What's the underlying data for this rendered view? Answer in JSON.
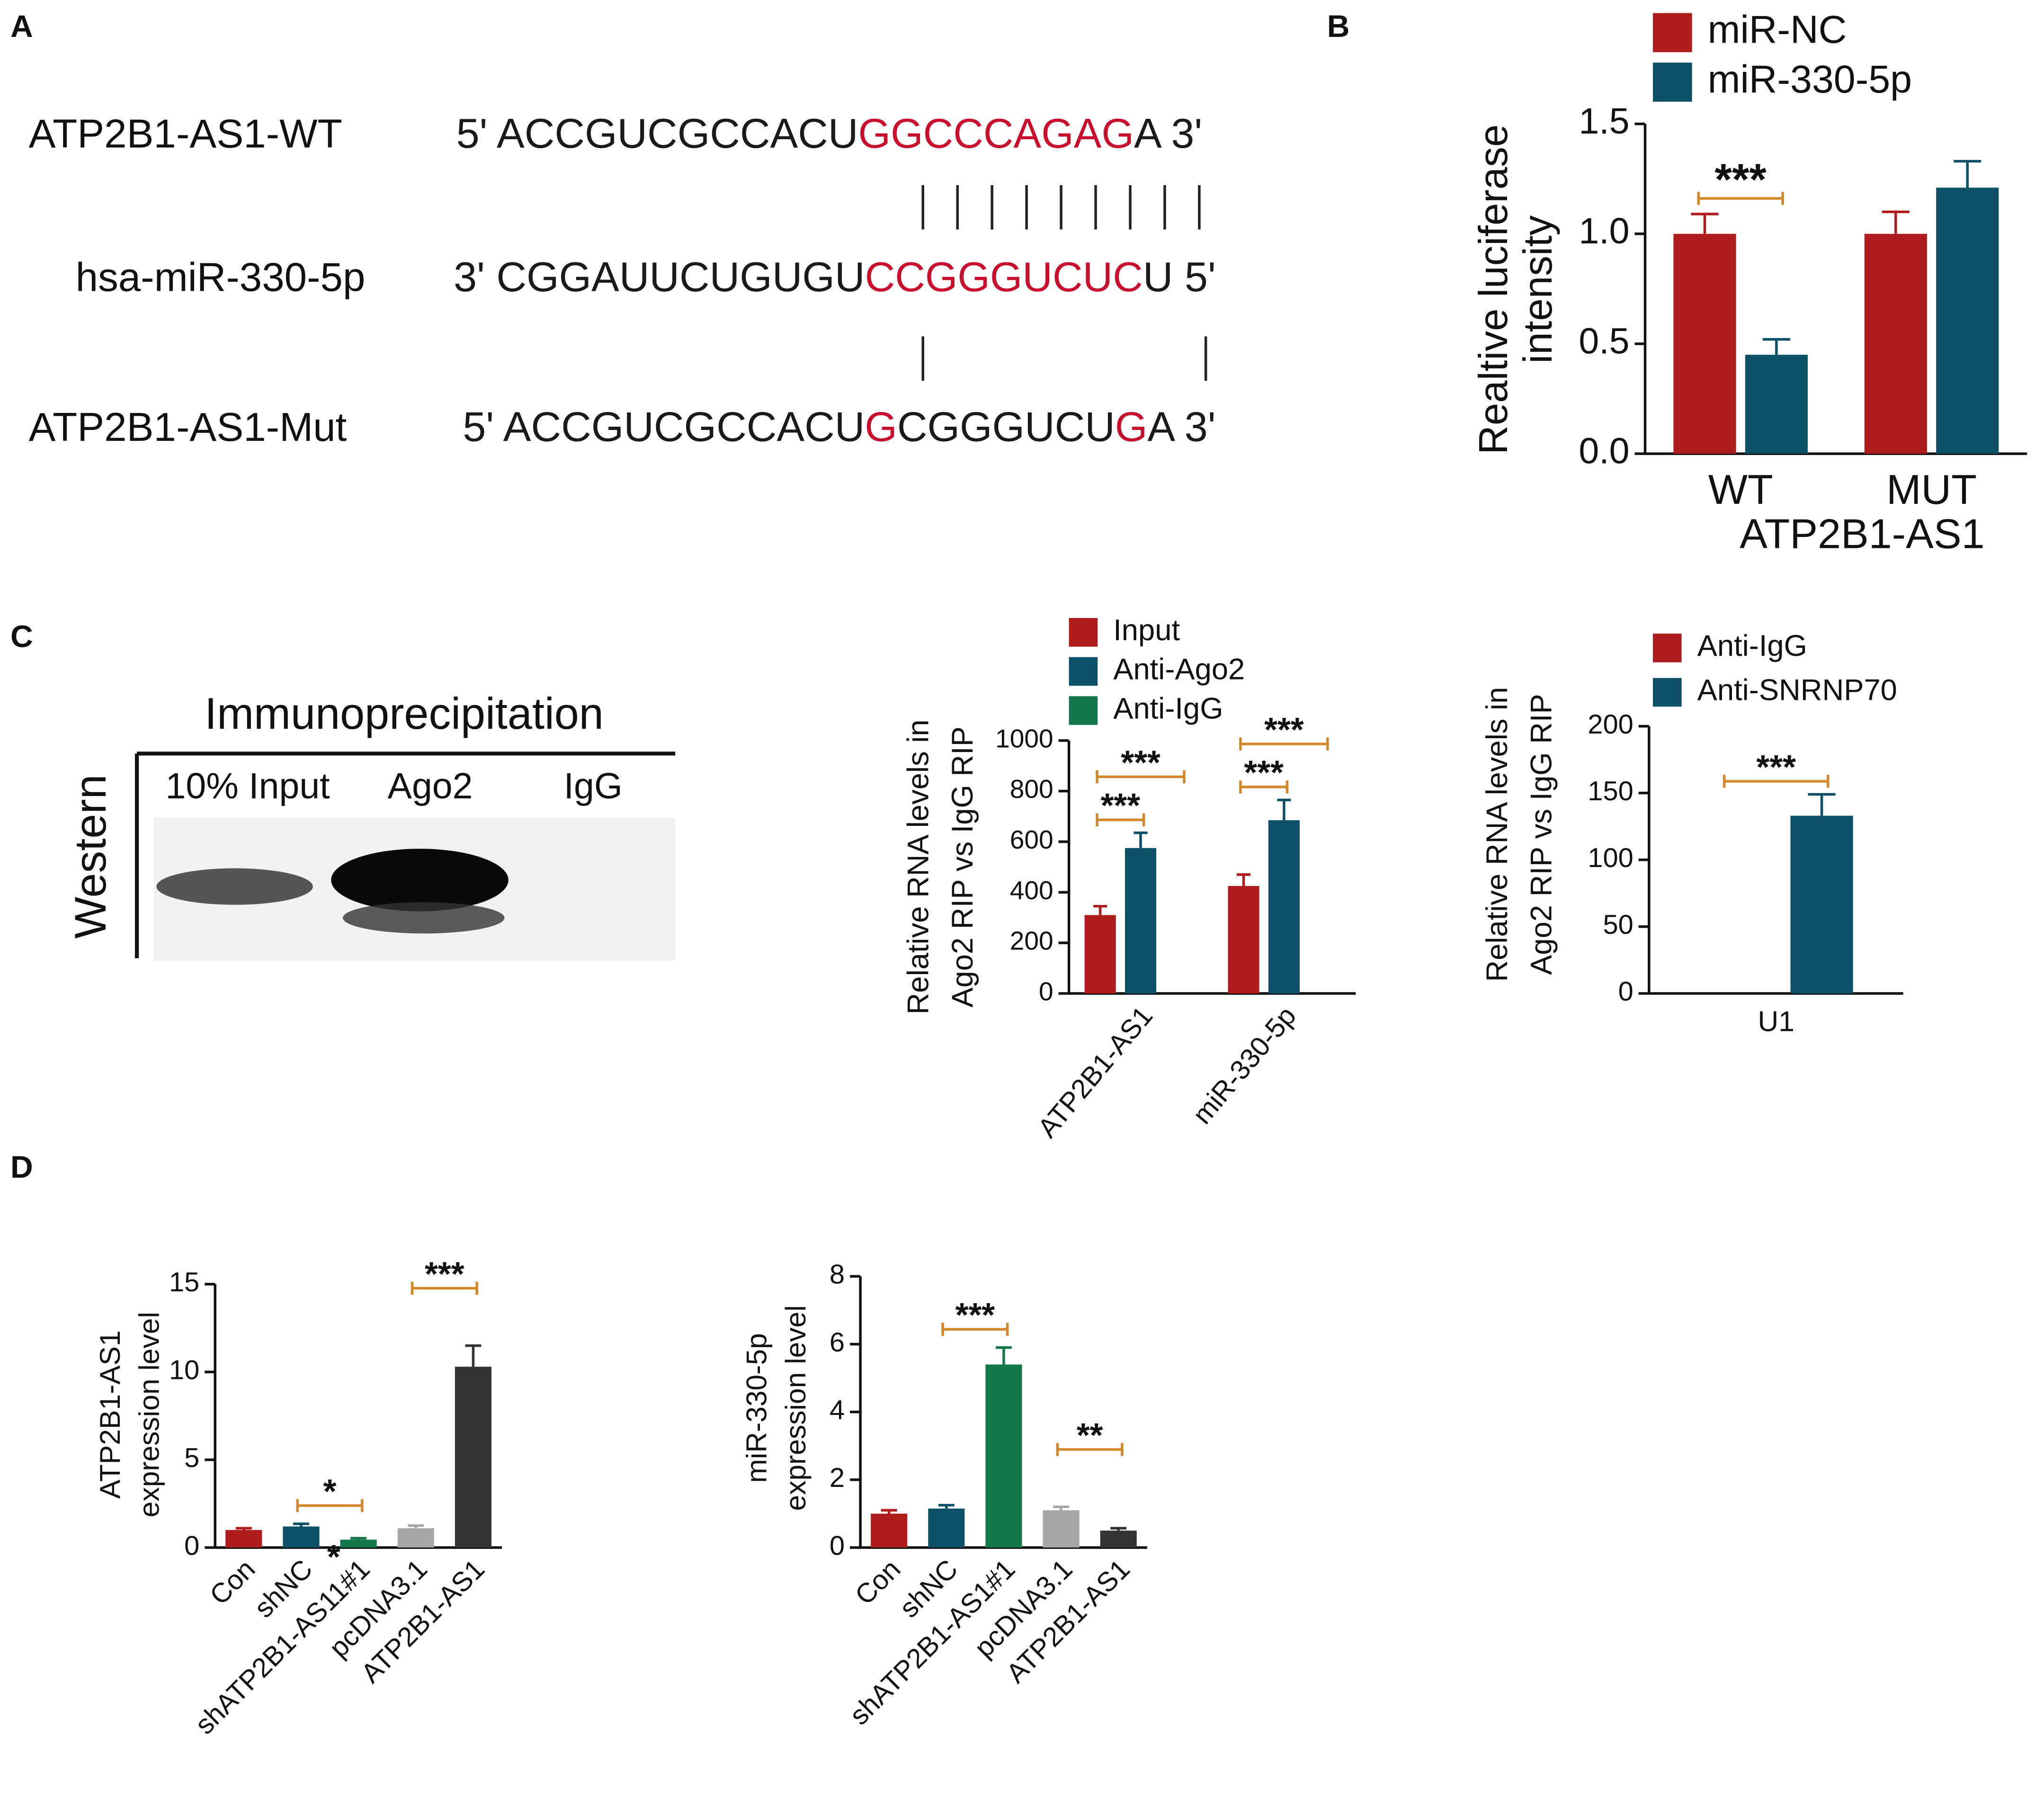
{
  "panel_labels": [
    "A",
    "B",
    "C",
    "D"
  ],
  "sequence_alignment": {
    "rows": [
      {
        "label": "ATP2B1-AS1-WT",
        "segments": [
          {
            "text": "5' ACCGUCGCCACU",
            "color": "#1a1a1a"
          },
          {
            "text": "GGCCCAGAG",
            "color": "#c8102e"
          },
          {
            "text": "A 3'",
            "color": "#1a1a1a"
          }
        ]
      },
      {
        "label": "hsa-miR-330-5p",
        "segments": [
          {
            "text": "3' CGGAUUCUGUGU",
            "color": "#1a1a1a"
          },
          {
            "text": "CCGGGUCUC",
            "color": "#c8102e"
          },
          {
            "text": "U 5'",
            "color": "#1a1a1a"
          }
        ]
      },
      {
        "label": "ATP2B1-AS1-Mut",
        "segments": [
          {
            "text": "5' ACCGUCGCCACU",
            "color": "#1a1a1a"
          },
          {
            "text": "G",
            "color": "#c8102e"
          },
          {
            "text": "CGGGUCU",
            "color": "#1a1a1a"
          },
          {
            "text": "G",
            "color": "#c8102e"
          },
          {
            "text": "A 3'",
            "color": "#1a1a1a"
          }
        ]
      }
    ]
  },
  "western": {
    "title": "Immunoprecipitation",
    "side_label": "Western",
    "lanes": [
      "10% Input",
      "Ago2",
      "IgG"
    ]
  },
  "chart_data": [
    {
      "type": "bar",
      "ylabel": [
        "Realtive luciferase",
        "intensity"
      ],
      "xlabel": "ATP2B1-AS1",
      "categories": [
        "WT",
        "MUT"
      ],
      "series": [
        {
          "name": "miR-NC",
          "color": "#b01c1c",
          "values": [
            1.0,
            1.0
          ],
          "errors": [
            0.09,
            0.1
          ]
        },
        {
          "name": "miR-330-5p",
          "color": "#0d5068",
          "values": [
            0.45,
            1.21
          ],
          "errors": [
            0.07,
            0.12
          ]
        }
      ],
      "ylim": [
        0,
        1.5
      ],
      "yticks": [
        {
          "value": 0,
          "label": "0.0"
        },
        0.5,
        {
          "value": 1,
          "label": "1.0"
        },
        1.5
      ],
      "annotations": [
        {
          "text": "***",
          "category": 0,
          "series": [
            0,
            1
          ]
        }
      ]
    },
    {
      "type": "bar",
      "ylabel": [
        "Relative RNA levels in",
        "Ago2 RIP vs IgG RIP"
      ],
      "categories": [
        "ATP2B1-AS1",
        "miR-330-5p"
      ],
      "series": [
        {
          "name": "Input",
          "color": "#b01c1c",
          "values": [
            310,
            425
          ],
          "errors": [
            35,
            45
          ]
        },
        {
          "name": "Anti-Ago2",
          "color": "#0d5068",
          "values": [
            575,
            685
          ],
          "errors": [
            60,
            80
          ]
        },
        {
          "name": "Anti-IgG",
          "color": "#12774a",
          "values": [
            0,
            0
          ],
          "errors": [
            0,
            0
          ]
        }
      ],
      "ylim": [
        0,
        1000
      ],
      "yticks": [
        0,
        200,
        400,
        600,
        800,
        1000
      ],
      "annotations": [
        {
          "text": "***",
          "category": 0,
          "series": [
            0,
            1
          ]
        },
        {
          "text": "***",
          "category": 0,
          "series": [
            0,
            2
          ]
        },
        {
          "text": "***",
          "category": 1,
          "series": [
            0,
            1
          ]
        },
        {
          "text": "***",
          "category": 1,
          "series": [
            0,
            2
          ]
        }
      ]
    },
    {
      "type": "bar",
      "ylabel": [
        "Relative RNA levels in",
        "Ago2 RIP vs IgG RIP"
      ],
      "categories": [
        "U1"
      ],
      "series": [
        {
          "name": "Anti-IgG",
          "color": "#b01c1c",
          "values": [
            0
          ],
          "errors": [
            0
          ]
        },
        {
          "name": "Anti-SNRNP70",
          "color": "#0d5068",
          "values": [
            133
          ],
          "errors": [
            16
          ]
        }
      ],
      "ylim": [
        0,
        200
      ],
      "yticks": [
        0,
        50,
        100,
        150,
        200
      ],
      "annotations": [
        {
          "text": "***",
          "category": 0,
          "series": [
            0,
            1
          ]
        }
      ]
    },
    {
      "type": "bar",
      "ylabel": [
        "ATP2B1-AS1",
        "expression level"
      ],
      "categories": [
        "Con",
        "shNC",
        "shATP2B1-AS11#1",
        "pcDNA3.1",
        "ATP2B1-AS1"
      ],
      "values": [
        1.0,
        1.2,
        0.45,
        1.1,
        10.3
      ],
      "errors": [
        0.1,
        0.15,
        0.08,
        0.15,
        1.2
      ],
      "colors": [
        "#b01c1c",
        "#0d5068",
        "#12774a",
        "#a6a6a6",
        "#333333"
      ],
      "ylim": [
        0,
        15
      ],
      "yticks": [
        0,
        5,
        10,
        15
      ],
      "annotations": [
        {
          "text": "*",
          "categories": [
            1,
            2
          ]
        },
        {
          "text": "***",
          "categories": [
            3,
            4
          ]
        }
      ],
      "extra_text": "*"
    },
    {
      "type": "bar",
      "ylabel": [
        "miR-330-5p",
        "expression level"
      ],
      "categories": [
        "Con",
        "shNC",
        "shATP2B1-AS1#1",
        "pcDNA3.1",
        "ATP2B1-AS1"
      ],
      "values": [
        1.0,
        1.15,
        5.4,
        1.1,
        0.5
      ],
      "errors": [
        0.1,
        0.1,
        0.5,
        0.1,
        0.07
      ],
      "colors": [
        "#b01c1c",
        "#0d5068",
        "#12774a",
        "#a6a6a6",
        "#333333"
      ],
      "ylim": [
        0,
        8
      ],
      "yticks": [
        0,
        2,
        4,
        6,
        8
      ],
      "annotations": [
        {
          "text": "***",
          "categories": [
            1,
            2
          ]
        },
        {
          "text": "**",
          "categories": [
            3,
            4
          ]
        }
      ]
    }
  ]
}
